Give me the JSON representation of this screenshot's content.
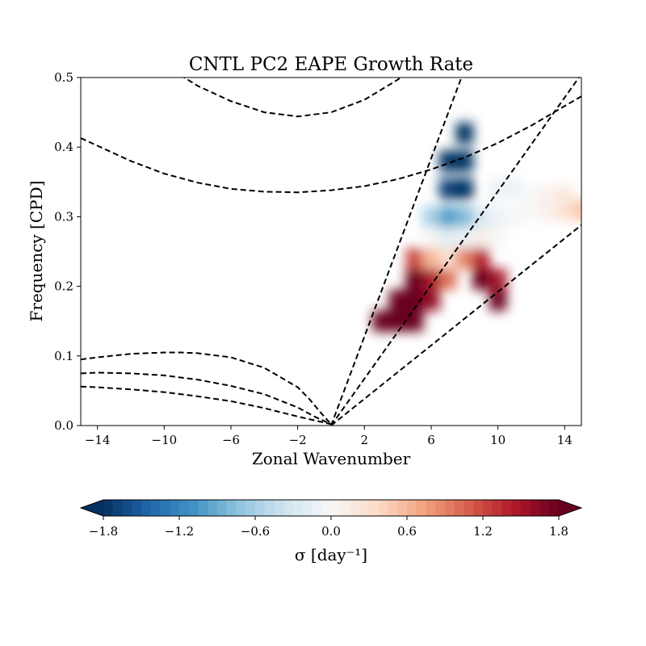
{
  "chart_data": {
    "type": "heatmap",
    "title": "CNTL PC2 EAPE Growth Rate",
    "xlabel": "Zonal Wavenumber",
    "ylabel": "Frequency [CPD]",
    "xlim": [
      -15,
      15
    ],
    "ylim": [
      0,
      0.5
    ],
    "x_ticks": [
      -14,
      -10,
      -6,
      -2,
      2,
      6,
      10,
      14
    ],
    "x_tick_labels": [
      "−14",
      "−10",
      "−6",
      "−2",
      "2",
      "6",
      "10",
      "14"
    ],
    "y_ticks": [
      0.0,
      0.1,
      0.2,
      0.3,
      0.4,
      0.5
    ],
    "y_tick_labels": [
      "0.0",
      "0.1",
      "0.2",
      "0.3",
      "0.4",
      "0.5"
    ],
    "grid": false,
    "colormap": "RdBu_r",
    "colors": {
      "low": "#053061",
      "mid": "#f7f7f7",
      "high": "#67001f"
    },
    "colorbar": {
      "label": "σ [day⁻¹]",
      "range": [
        -1.8,
        1.8
      ],
      "extend": "both",
      "ticks": [
        -1.8,
        -1.2,
        -0.6,
        0.0,
        0.6,
        1.2,
        1.8
      ],
      "tick_labels": [
        "−1.8",
        "−1.2",
        "−0.6",
        "0.0",
        "0.6",
        "1.2",
        "1.8"
      ]
    },
    "cells": [
      {
        "k": 3,
        "f": 0.15,
        "v": 1.8
      },
      {
        "k": 4,
        "f": 0.15,
        "v": 1.8
      },
      {
        "k": 5,
        "f": 0.15,
        "v": 1.8
      },
      {
        "k": 4,
        "f": 0.18,
        "v": 1.8
      },
      {
        "k": 5,
        "f": 0.18,
        "v": 1.8
      },
      {
        "k": 6,
        "f": 0.18,
        "v": 1.6
      },
      {
        "k": 5,
        "f": 0.21,
        "v": 1.8
      },
      {
        "k": 6,
        "f": 0.21,
        "v": 1.5
      },
      {
        "k": 7,
        "f": 0.21,
        "v": 1.0
      },
      {
        "k": 5,
        "f": 0.24,
        "v": 1.2
      },
      {
        "k": 6,
        "f": 0.24,
        "v": 0.6
      },
      {
        "k": 7,
        "f": 0.24,
        "v": 0.3
      },
      {
        "k": 8,
        "f": 0.24,
        "v": 0.9
      },
      {
        "k": 9,
        "f": 0.24,
        "v": 1.4
      },
      {
        "k": 9,
        "f": 0.21,
        "v": 1.8
      },
      {
        "k": 10,
        "f": 0.18,
        "v": 1.8
      },
      {
        "k": 10,
        "f": 0.21,
        "v": 1.5
      },
      {
        "k": 6,
        "f": 0.27,
        "v": 0.0
      },
      {
        "k": 7,
        "f": 0.27,
        "v": -0.2
      },
      {
        "k": 8,
        "f": 0.27,
        "v": -0.1
      },
      {
        "k": 9,
        "f": 0.27,
        "v": 0.1
      },
      {
        "k": 10,
        "f": 0.27,
        "v": 0.0
      },
      {
        "k": 6,
        "f": 0.3,
        "v": -0.6
      },
      {
        "k": 7,
        "f": 0.3,
        "v": -1.0
      },
      {
        "k": 8,
        "f": 0.3,
        "v": -0.8
      },
      {
        "k": 9,
        "f": 0.3,
        "v": -0.3
      },
      {
        "k": 10,
        "f": 0.3,
        "v": -0.1
      },
      {
        "k": 11,
        "f": 0.3,
        "v": 0.0
      },
      {
        "k": 12,
        "f": 0.31,
        "v": 0.0
      },
      {
        "k": 13,
        "f": 0.31,
        "v": 0.1
      },
      {
        "k": 14,
        "f": 0.31,
        "v": 0.3
      },
      {
        "k": 15,
        "f": 0.31,
        "v": 0.5
      },
      {
        "k": 10,
        "f": 0.34,
        "v": -0.1
      },
      {
        "k": 11,
        "f": 0.34,
        "v": -0.1
      },
      {
        "k": 12,
        "f": 0.33,
        "v": 0.0
      },
      {
        "k": 13,
        "f": 0.33,
        "v": 0.1
      },
      {
        "k": 14,
        "f": 0.33,
        "v": 0.2
      },
      {
        "k": 7,
        "f": 0.34,
        "v": -1.7
      },
      {
        "k": 8,
        "f": 0.34,
        "v": -1.8
      },
      {
        "k": 7,
        "f": 0.38,
        "v": -1.8
      },
      {
        "k": 8,
        "f": 0.38,
        "v": -1.8
      },
      {
        "k": 8,
        "f": 0.42,
        "v": -1.8
      }
    ],
    "dispersion_curves": [
      {
        "points": [
          [
            -15,
            0.413
          ],
          [
            -14,
            0.402
          ],
          [
            -12,
            0.38
          ],
          [
            -10,
            0.362
          ],
          [
            -8,
            0.349
          ],
          [
            -6,
            0.34
          ],
          [
            -4,
            0.336
          ],
          [
            -2,
            0.335
          ],
          [
            0,
            0.338
          ],
          [
            2,
            0.344
          ],
          [
            4,
            0.354
          ],
          [
            6,
            0.368
          ],
          [
            8,
            0.385
          ],
          [
            10,
            0.406
          ],
          [
            12,
            0.431
          ],
          [
            14,
            0.459
          ],
          [
            15,
            0.473
          ]
        ]
      },
      {
        "points": [
          [
            -10.7,
            0.535
          ],
          [
            -10,
            0.518
          ],
          [
            -8,
            0.488
          ],
          [
            -6,
            0.466
          ],
          [
            -4,
            0.45
          ],
          [
            -2,
            0.444
          ],
          [
            0,
            0.45
          ],
          [
            2,
            0.468
          ],
          [
            4,
            0.497
          ],
          [
            4.8,
            0.512
          ]
        ]
      },
      {
        "points": [
          [
            -15,
            0.095
          ],
          [
            -14,
            0.098
          ],
          [
            -12,
            0.103
          ],
          [
            -10,
            0.105
          ],
          [
            -9,
            0.105
          ],
          [
            -8,
            0.104
          ],
          [
            -6,
            0.098
          ],
          [
            -4,
            0.083
          ],
          [
            -2,
            0.055
          ],
          [
            -1.3,
            0.038
          ],
          [
            -0.6,
            0.018
          ],
          [
            0,
            0.002
          ]
        ]
      },
      {
        "points": [
          [
            -15,
            0.075
          ],
          [
            -14,
            0.076
          ],
          [
            -12,
            0.075
          ],
          [
            -10,
            0.072
          ],
          [
            -8,
            0.066
          ],
          [
            -6,
            0.057
          ],
          [
            -4,
            0.045
          ],
          [
            -2,
            0.026
          ],
          [
            -1,
            0.013
          ],
          [
            0,
            0.002
          ]
        ]
      },
      {
        "points": [
          [
            -15,
            0.056
          ],
          [
            -14,
            0.055
          ],
          [
            -12,
            0.052
          ],
          [
            -10,
            0.048
          ],
          [
            -8,
            0.042
          ],
          [
            -6,
            0.035
          ],
          [
            -4,
            0.025
          ],
          [
            -2,
            0.013
          ],
          [
            0,
            0.002
          ]
        ]
      },
      {
        "points": [
          [
            0,
            0
          ],
          [
            8.0,
            0.512
          ]
        ]
      },
      {
        "points": [
          [
            0,
            0
          ],
          [
            15.0,
            0.505
          ]
        ]
      },
      {
        "points": [
          [
            0,
            0
          ],
          [
            15.0,
            0.288
          ]
        ]
      }
    ]
  }
}
